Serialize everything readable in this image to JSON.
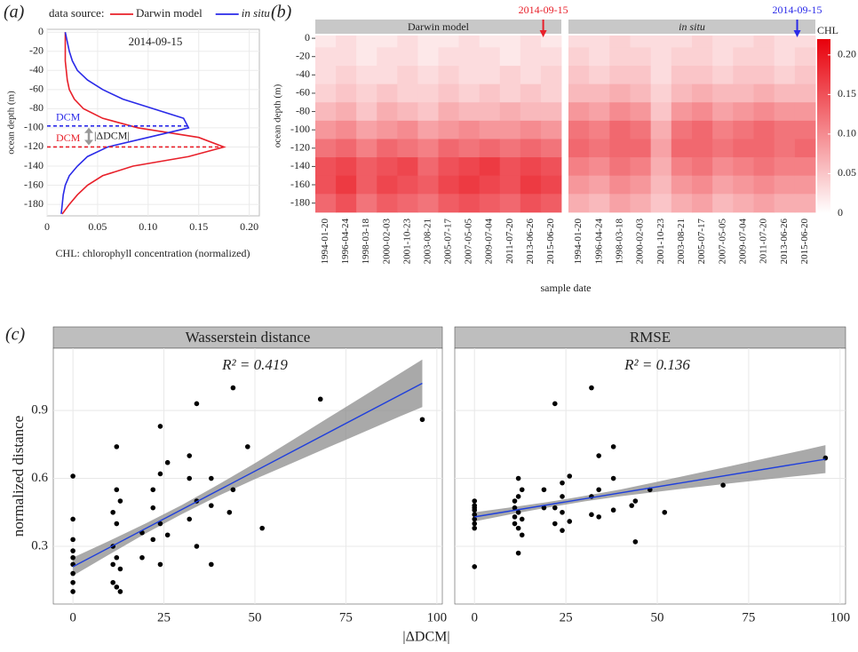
{
  "chart_data": [
    {
      "type": "line",
      "panel_label": "(a)",
      "orientation": "horizontal",
      "title": "2014-09-15",
      "legend_title": "data source:",
      "x_label": "CHL: chlorophyll concentration (normalized)",
      "y_label": "ocean depth (m)",
      "x": [
        0,
        -10,
        -20,
        -30,
        -40,
        -50,
        -60,
        -70,
        -80,
        -90,
        -100,
        -110,
        -120,
        -130,
        -140,
        -150,
        -160,
        -170,
        -180,
        -190
      ],
      "series": [
        {
          "name": "Darwin model",
          "color": "#e8202a",
          "values": [
            0.018,
            0.018,
            0.018,
            0.018,
            0.019,
            0.02,
            0.022,
            0.027,
            0.036,
            0.055,
            0.09,
            0.15,
            0.175,
            0.14,
            0.085,
            0.055,
            0.04,
            0.03,
            0.022,
            0.015
          ]
        },
        {
          "name": "in situ",
          "color": "#2a2ae8",
          "font_style": "italic",
          "values": [
            0.018,
            0.02,
            0.022,
            0.025,
            0.03,
            0.04,
            0.055,
            0.075,
            0.105,
            0.135,
            0.14,
            0.1,
            0.06,
            0.04,
            0.03,
            0.022,
            0.018,
            0.016,
            0.015,
            0.014
          ]
        }
      ],
      "xlim": [
        0,
        0.21
      ],
      "xticks": [
        0,
        0.05,
        {
          "value": 0.1,
          "label": "0.10"
        },
        0.15,
        {
          "value": 0.2,
          "label": "0.20"
        }
      ],
      "ylim": [
        -192,
        3
      ],
      "yticks": [
        0,
        -20,
        -40,
        -60,
        -80,
        -100,
        -120,
        -140,
        -160,
        -180
      ],
      "dcm": [
        {
          "label": "DCM",
          "depth": -98,
          "color": "#2a2ae8"
        },
        {
          "label": "DCM",
          "depth": -120,
          "color": "#e8202a"
        }
      ],
      "delta_label": "|ΔDCM|",
      "grid": true
    },
    {
      "type": "heatmap",
      "panel_label": "(b)",
      "x_label": "sample date",
      "y_label": "ocean depth (m)",
      "colorbar_label": "CHL",
      "zlim": [
        0,
        0.22
      ],
      "colors": [
        "#ffffff",
        "#e8000b"
      ],
      "colorbar_ticks": [
        0,
        0.05,
        {
          "value": 0.1,
          "label": "0.10"
        },
        0.15,
        {
          "value": 0.2,
          "label": "0.20"
        }
      ],
      "ylim": [
        -192,
        3
      ],
      "yticks": [
        0,
        -20,
        -40,
        -60,
        -80,
        -100,
        -120,
        -140,
        -160,
        -180
      ],
      "categories": [
        "1994-01-20",
        "1996-04-24",
        "1998-03-18",
        "2000-02-03",
        "2001-10-23",
        "2003-08-21",
        "2005-07-17",
        "2007-05-05",
        "2009-07-04",
        "2011-07-20",
        "2013-06-26",
        "2015-06-20"
      ],
      "y": [
        0,
        -20,
        -40,
        -60,
        -80,
        -100,
        -120,
        -140,
        -160,
        -180
      ],
      "facets": [
        {
          "name": "Darwin model",
          "marker": {
            "date": "2014-09-15",
            "color": "#e8202a"
          },
          "z": [
            [
              0.02,
              0.03,
              0.02,
              0.02,
              0.03,
              0.02,
              0.02,
              0.03,
              0.02,
              0.02,
              0.03,
              0.02
            ],
            [
              0.03,
              0.03,
              0.02,
              0.03,
              0.03,
              0.02,
              0.03,
              0.03,
              0.03,
              0.02,
              0.03,
              0.03
            ],
            [
              0.03,
              0.04,
              0.03,
              0.03,
              0.04,
              0.03,
              0.04,
              0.03,
              0.03,
              0.04,
              0.03,
              0.04
            ],
            [
              0.04,
              0.05,
              0.04,
              0.05,
              0.04,
              0.04,
              0.05,
              0.04,
              0.05,
              0.04,
              0.05,
              0.04
            ],
            [
              0.06,
              0.07,
              0.05,
              0.07,
              0.06,
              0.05,
              0.07,
              0.06,
              0.06,
              0.07,
              0.06,
              0.06
            ],
            [
              0.09,
              0.1,
              0.08,
              0.09,
              0.1,
              0.08,
              0.09,
              0.1,
              0.09,
              0.09,
              0.1,
              0.09
            ],
            [
              0.12,
              0.13,
              0.11,
              0.13,
              0.12,
              0.11,
              0.13,
              0.12,
              0.13,
              0.12,
              0.13,
              0.12
            ],
            [
              0.15,
              0.16,
              0.14,
              0.15,
              0.16,
              0.13,
              0.15,
              0.16,
              0.17,
              0.15,
              0.16,
              0.15
            ],
            [
              0.15,
              0.17,
              0.14,
              0.16,
              0.15,
              0.14,
              0.16,
              0.17,
              0.16,
              0.15,
              0.17,
              0.16
            ],
            [
              0.13,
              0.15,
              0.12,
              0.14,
              0.13,
              0.12,
              0.14,
              0.15,
              0.14,
              0.13,
              0.15,
              0.14
            ]
          ]
        },
        {
          "name": "in situ",
          "font_style": "italic",
          "marker": {
            "date": "2014-09-15",
            "color": "#2a2ae8"
          },
          "z": [
            [
              0.03,
              0.03,
              0.04,
              0.03,
              0.03,
              0.03,
              0.04,
              0.03,
              0.03,
              0.04,
              0.03,
              0.03
            ],
            [
              0.04,
              0.03,
              0.04,
              0.04,
              0.03,
              0.04,
              0.04,
              0.03,
              0.04,
              0.04,
              0.03,
              0.04
            ],
            [
              0.05,
              0.04,
              0.05,
              0.05,
              0.03,
              0.05,
              0.05,
              0.04,
              0.05,
              0.05,
              0.04,
              0.05
            ],
            [
              0.06,
              0.06,
              0.07,
              0.06,
              0.04,
              0.06,
              0.07,
              0.06,
              0.06,
              0.07,
              0.06,
              0.06
            ],
            [
              0.09,
              0.08,
              0.1,
              0.09,
              0.05,
              0.09,
              0.1,
              0.08,
              0.09,
              0.1,
              0.09,
              0.09
            ],
            [
              0.12,
              0.11,
              0.13,
              0.12,
              0.07,
              0.12,
              0.13,
              0.11,
              0.12,
              0.13,
              0.12,
              0.12
            ],
            [
              0.13,
              0.12,
              0.13,
              0.13,
              0.08,
              0.13,
              0.13,
              0.12,
              0.13,
              0.13,
              0.12,
              0.13
            ],
            [
              0.11,
              0.1,
              0.12,
              0.11,
              0.07,
              0.11,
              0.12,
              0.1,
              0.11,
              0.12,
              0.11,
              0.11
            ],
            [
              0.09,
              0.08,
              0.1,
              0.09,
              0.06,
              0.09,
              0.1,
              0.08,
              0.09,
              0.1,
              0.09,
              0.09
            ],
            [
              0.07,
              0.06,
              0.08,
              0.07,
              0.05,
              0.07,
              0.08,
              0.06,
              0.07,
              0.08,
              0.07,
              0.07
            ]
          ]
        }
      ]
    },
    {
      "type": "scatter",
      "panel_label": "(c)",
      "title": "Wasserstein distance",
      "annotation": "R² = 0.419",
      "x_label": "|ΔDCM|",
      "y_label": "normalized distance",
      "x": [
        0,
        0,
        0,
        0,
        0,
        0,
        0,
        0,
        0,
        11,
        11,
        11,
        11,
        12,
        12,
        12,
        12,
        12,
        13,
        13,
        13,
        19,
        19,
        22,
        22,
        22,
        24,
        24,
        24,
        24,
        26,
        26,
        32,
        32,
        32,
        34,
        34,
        34,
        38,
        38,
        38,
        43,
        44,
        44,
        48,
        52,
        68,
        96
      ],
      "values": [
        0.61,
        0.42,
        0.33,
        0.28,
        0.22,
        0.18,
        0.14,
        0.1,
        0.25,
        0.45,
        0.3,
        0.22,
        0.14,
        0.74,
        0.55,
        0.4,
        0.25,
        0.12,
        0.5,
        0.2,
        0.1,
        0.36,
        0.25,
        0.55,
        0.47,
        0.33,
        0.83,
        0.62,
        0.4,
        0.22,
        0.67,
        0.35,
        0.7,
        0.6,
        0.42,
        0.93,
        0.5,
        0.3,
        0.6,
        0.48,
        0.22,
        0.45,
        1.0,
        0.55,
        0.74,
        0.38,
        0.95,
        0.86
      ],
      "fit": {
        "x": [
          0,
          96
        ],
        "values": [
          0.21,
          1.02
        ],
        "color": "#1f3fdc"
      },
      "band": {
        "x": [
          0,
          10,
          20,
          30,
          40,
          50,
          60,
          70,
          80,
          90,
          96
        ],
        "lower": [
          0.17,
          0.264,
          0.357,
          0.443,
          0.523,
          0.597,
          0.666,
          0.736,
          0.805,
          0.875,
          0.915
        ],
        "upper": [
          0.25,
          0.324,
          0.401,
          0.483,
          0.573,
          0.667,
          0.766,
          0.866,
          0.965,
          1.065,
          1.125
        ]
      },
      "xlim": [
        -5.4,
        101.5
      ],
      "xticks": [
        0,
        25,
        50,
        75,
        100
      ],
      "ylim": [
        0.045,
        1.175
      ],
      "yticks": [
        0.3,
        0.6,
        0.9
      ],
      "grid": true
    },
    {
      "type": "scatter",
      "title": "RMSE",
      "annotation": "R² = 0.136",
      "x": [
        0,
        0,
        0,
        0,
        0,
        0,
        0,
        0,
        0,
        11,
        11,
        11,
        11,
        12,
        12,
        12,
        12,
        12,
        13,
        13,
        13,
        19,
        19,
        22,
        22,
        22,
        24,
        24,
        24,
        24,
        26,
        26,
        32,
        32,
        32,
        34,
        34,
        34,
        38,
        38,
        38,
        43,
        44,
        44,
        48,
        52,
        68,
        96
      ],
      "values": [
        0.46,
        0.4,
        0.5,
        0.44,
        0.47,
        0.42,
        0.38,
        0.21,
        0.48,
        0.5,
        0.43,
        0.4,
        0.47,
        0.6,
        0.52,
        0.45,
        0.38,
        0.27,
        0.55,
        0.42,
        0.35,
        0.47,
        0.55,
        0.93,
        0.47,
        0.4,
        0.58,
        0.52,
        0.45,
        0.37,
        0.61,
        0.41,
        1.0,
        0.52,
        0.44,
        0.7,
        0.55,
        0.43,
        0.74,
        0.6,
        0.46,
        0.48,
        0.5,
        0.32,
        0.55,
        0.45,
        0.57,
        0.69
      ],
      "fit": {
        "x": [
          0,
          96
        ],
        "values": [
          0.43,
          0.685
        ],
        "color": "#1f3fdc"
      },
      "band": {
        "x": [
          0,
          10,
          20,
          30,
          40,
          50,
          60,
          70,
          80,
          90,
          96
        ],
        "lower": [
          0.41,
          0.442,
          0.471,
          0.498,
          0.521,
          0.541,
          0.56,
          0.578,
          0.596,
          0.613,
          0.623
        ],
        "upper": [
          0.45,
          0.472,
          0.495,
          0.522,
          0.551,
          0.585,
          0.62,
          0.654,
          0.69,
          0.725,
          0.747
        ]
      },
      "xlim": [
        -5.4,
        101.5
      ],
      "xticks": [
        0,
        25,
        50,
        75,
        100
      ],
      "ylim": [
        0.045,
        1.175
      ],
      "yticks": [
        0.3,
        0.6,
        0.9
      ],
      "grid": true
    }
  ]
}
